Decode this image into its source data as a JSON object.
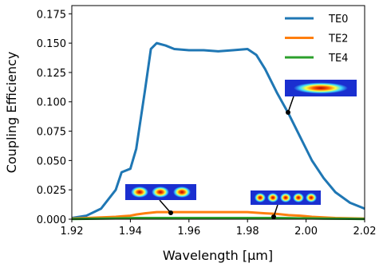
{
  "chart_data": {
    "type": "line",
    "xlabel": "Wavelength [μm]",
    "ylabel": "Coupling Efficiency",
    "x": [
      1.92,
      1.925,
      1.93,
      1.935,
      1.937,
      1.94,
      1.942,
      1.945,
      1.947,
      1.949,
      1.952,
      1.955,
      1.96,
      1.965,
      1.97,
      1.975,
      1.98,
      1.983,
      1.986,
      1.99,
      1.994,
      1.998,
      2.002,
      2.006,
      2.01,
      2.015,
      2.02
    ],
    "series": [
      {
        "name": "TE0",
        "color": "#1f77b4",
        "values": [
          0.001,
          0.003,
          0.009,
          0.025,
          0.04,
          0.043,
          0.06,
          0.11,
          0.145,
          0.15,
          0.148,
          0.145,
          0.144,
          0.144,
          0.143,
          0.144,
          0.145,
          0.14,
          0.128,
          0.108,
          0.09,
          0.07,
          0.05,
          0.035,
          0.023,
          0.014,
          0.009
        ]
      },
      {
        "name": "TE2",
        "color": "#ff7f0e",
        "values": [
          0.0005,
          0.001,
          0.0015,
          0.002,
          0.0025,
          0.003,
          0.004,
          0.005,
          0.0055,
          0.006,
          0.006,
          0.006,
          0.006,
          0.006,
          0.006,
          0.006,
          0.006,
          0.0055,
          0.005,
          0.0045,
          0.0035,
          0.003,
          0.002,
          0.0015,
          0.001,
          0.0008,
          0.0005
        ]
      },
      {
        "name": "TE4",
        "color": "#2ca02c",
        "values": [
          0.0002,
          0.0003,
          0.0005,
          0.0007,
          0.0008,
          0.0009,
          0.001,
          0.001,
          0.001,
          0.001,
          0.001,
          0.001,
          0.001,
          0.001,
          0.001,
          0.001,
          0.001,
          0.001,
          0.001,
          0.001,
          0.0009,
          0.0008,
          0.0007,
          0.0005,
          0.0004,
          0.0003,
          0.0002
        ]
      }
    ],
    "xlim": [
      1.92,
      2.02
    ],
    "xticks": [
      1.92,
      1.94,
      1.96,
      1.98,
      {
        "value": 2,
        "label": "2.00"
      },
      2.02
    ],
    "ylim": [
      0,
      0.182
    ],
    "yticks": [
      {
        "value": 0,
        "label": "0.000"
      },
      0.025,
      {
        "value": 0.05,
        "label": "0.050"
      },
      0.075,
      {
        "value": 0.1,
        "label": "0.100"
      },
      0.125,
      {
        "value": 0.15,
        "label": "0.150"
      },
      0.175
    ],
    "grid": false,
    "legend": "upper-right"
  }
}
